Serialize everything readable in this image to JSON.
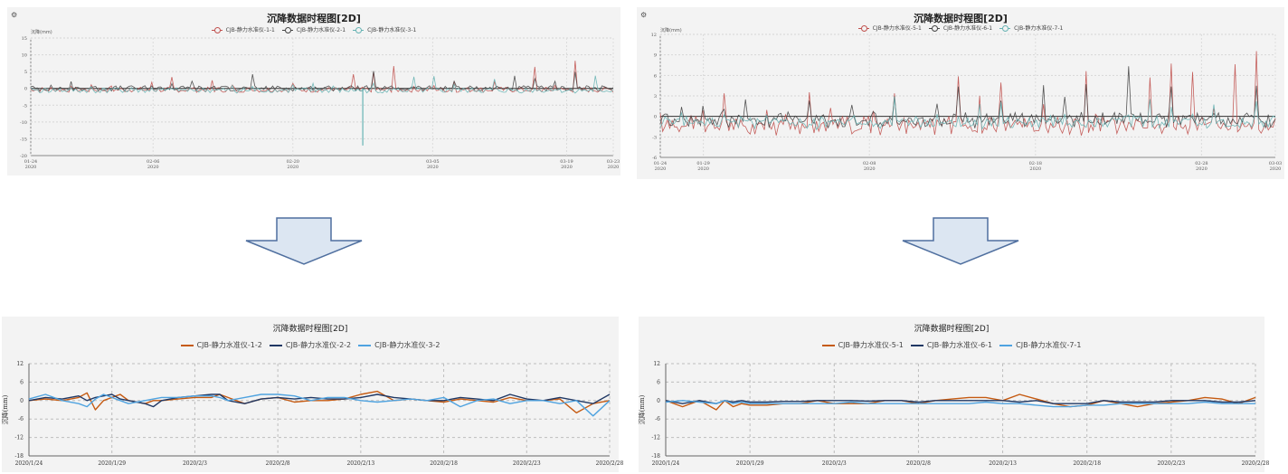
{
  "chart_data": [
    {
      "type": "line",
      "title": "沉降数据时程图[2D]",
      "ylabel": "沉降(mm)",
      "ylim": [
        -20,
        15
      ],
      "yticks": [
        15,
        10,
        5,
        0,
        -5,
        -10,
        -15,
        -20
      ],
      "xticks": [
        [
          "01-24",
          "2020"
        ],
        [
          "02-06",
          "2020"
        ],
        [
          "02-20",
          "2020"
        ],
        [
          "03-05",
          "2020"
        ],
        [
          "03-19",
          "2020"
        ],
        [
          "03-23",
          "2020"
        ]
      ],
      "grid": true,
      "legend_position": "top",
      "series": [
        {
          "name": "CJB-静力水准仪-1-1",
          "color": "#c0504d"
        },
        {
          "name": "CJB-静力水准仪-2-1",
          "color": "#444444"
        },
        {
          "name": "CJB-静力水准仪-3-1",
          "color": "#66b3b3"
        }
      ]
    },
    {
      "type": "line",
      "title": "沉降数据时程图[2D]",
      "ylabel": "沉降(mm)",
      "ylim": [
        -6,
        12
      ],
      "yticks": [
        12,
        9,
        6,
        3,
        0,
        -3,
        -6
      ],
      "xticks": [
        [
          "01-24",
          "2020"
        ],
        [
          "01-29",
          "2020"
        ],
        [
          "02-08",
          "2020"
        ],
        [
          "02-18",
          "2020"
        ],
        [
          "02-28",
          "2020"
        ],
        [
          "03-03",
          "2020"
        ]
      ],
      "grid": true,
      "legend_position": "top",
      "series": [
        {
          "name": "CJB-静力水准仪-5-1",
          "color": "#c0504d"
        },
        {
          "name": "CJB-静力水准仪-6-1",
          "color": "#444444"
        },
        {
          "name": "CJB-静力水准仪-7-1",
          "color": "#66b3b3"
        }
      ]
    },
    {
      "type": "line",
      "title": "沉降数据时程图[2D]",
      "ylabel": "沉降(mm)",
      "ylim": [
        -18,
        12
      ],
      "yticks": [
        12,
        6,
        0,
        -6,
        -12,
        -18
      ],
      "categories": [
        "2020/1/24",
        "2020/1/29",
        "2020/2/3",
        "2020/2/8",
        "2020/2/13",
        "2020/2/18",
        "2020/2/23",
        "2020/2/28"
      ],
      "grid": true,
      "legend_position": "top",
      "series": [
        {
          "name": "CJB-静力水准仪-1-2",
          "color": "#c55a11",
          "x": [
            0,
            1,
            2,
            3,
            3.5,
            4,
            4.5,
            5,
            5.5,
            6,
            7,
            7.5,
            8,
            9,
            10,
            11,
            11.5,
            12,
            13,
            14,
            15,
            16,
            17,
            18,
            19,
            20,
            21,
            22,
            23,
            24,
            25,
            26,
            27,
            28,
            29,
            30,
            31,
            32,
            33,
            34,
            35
          ],
          "values": [
            0,
            0.5,
            0,
            1,
            2.5,
            -3,
            0,
            1,
            2,
            0,
            -1,
            0,
            0,
            0.5,
            1,
            1,
            2,
            1,
            -1,
            0.5,
            1,
            -0.5,
            0,
            0,
            0.5,
            2,
            3,
            0,
            0.5,
            0,
            -0.5,
            0.5,
            0,
            -0.5,
            1,
            0,
            0,
            0.5,
            -4,
            -1,
            0
          ]
        },
        {
          "name": "CJB-静力水准仪-2-2",
          "color": "#203864",
          "x": [
            0,
            1,
            2,
            3,
            3.5,
            4,
            4.5,
            5,
            5.5,
            6,
            7,
            7.5,
            8,
            9,
            10,
            11,
            11.5,
            12,
            13,
            14,
            15,
            16,
            17,
            18,
            19,
            20,
            21,
            22,
            23,
            24,
            25,
            26,
            27,
            28,
            29,
            30,
            31,
            32,
            33,
            34,
            35
          ],
          "values": [
            0,
            1,
            0.5,
            1.5,
            0,
            1,
            1.5,
            2,
            0.5,
            0,
            -1,
            -2,
            0,
            1,
            1.5,
            2,
            2,
            0,
            -1,
            0.5,
            1,
            0.5,
            1,
            0.5,
            0.5,
            1,
            2,
            1,
            0.5,
            0,
            0,
            1,
            0.5,
            0,
            2,
            0.5,
            0,
            1,
            0,
            -1,
            2
          ]
        },
        {
          "name": "CJB-静力水准仪-3-2",
          "color": "#4fa3e0",
          "x": [
            0,
            1,
            2,
            3,
            3.5,
            4,
            4.5,
            5,
            5.5,
            6,
            7,
            7.5,
            8,
            9,
            10,
            11,
            11.5,
            12,
            13,
            14,
            15,
            16,
            17,
            18,
            19,
            20,
            21,
            22,
            23,
            24,
            25,
            26,
            27,
            28,
            29,
            30,
            31,
            32,
            33,
            34,
            35
          ],
          "values": [
            0.5,
            2,
            0,
            -1,
            -2,
            0.5,
            2,
            1,
            0,
            -1,
            0,
            0.5,
            1,
            1,
            1.5,
            1.5,
            1,
            0,
            1,
            2,
            2,
            1.5,
            0,
            1,
            1,
            0,
            -0.5,
            0,
            0.5,
            0,
            1,
            -2,
            0,
            0.5,
            -1,
            0,
            0,
            -1,
            0,
            -5,
            0
          ]
        }
      ]
    },
    {
      "type": "line",
      "title": "沉降数据时程图[2D]",
      "ylabel": "沉降(mm)",
      "ylim": [
        -18,
        12
      ],
      "yticks": [
        12,
        6,
        0,
        -6,
        -12,
        -18
      ],
      "categories": [
        "2020/1/24",
        "2020/1/29",
        "2020/2/3",
        "2020/2/8",
        "2020/2/13",
        "2020/2/18",
        "2020/2/23",
        "2020/2/28"
      ],
      "grid": true,
      "legend_position": "top",
      "series": [
        {
          "name": "CJB-静力水准仪-5-1",
          "color": "#c55a11",
          "x": [
            0,
            1,
            2,
            3,
            3.5,
            4,
            4.5,
            5,
            6,
            7,
            8,
            9,
            10,
            11,
            12,
            13,
            14,
            15,
            16,
            17,
            18,
            19,
            20,
            21,
            22,
            23,
            24,
            25,
            26,
            27,
            28,
            29,
            30,
            31,
            32,
            33,
            34,
            35
          ],
          "values": [
            0,
            -2,
            0,
            -3,
            0,
            -2,
            -1,
            -1.5,
            -1.5,
            -1,
            -1,
            0,
            -1,
            -1,
            -1,
            0,
            0,
            -1,
            0,
            0.5,
            1,
            1,
            0,
            2,
            0.5,
            -1,
            -2,
            -1.5,
            0,
            -1,
            -2,
            -1,
            -0.5,
            0,
            1,
            0.5,
            -1,
            1
          ]
        },
        {
          "name": "CJB-静力水准仪-6-1",
          "color": "#203864",
          "x": [
            0,
            1,
            2,
            3,
            3.5,
            4,
            4.5,
            5,
            6,
            7,
            8,
            9,
            10,
            11,
            12,
            13,
            14,
            15,
            16,
            17,
            18,
            19,
            20,
            21,
            22,
            23,
            24,
            25,
            26,
            27,
            28,
            29,
            30,
            31,
            32,
            33,
            34,
            35
          ],
          "values": [
            0,
            -1,
            0,
            -1,
            0,
            -0.5,
            0,
            -0.5,
            -0.5,
            -0.3,
            -0.3,
            0,
            0,
            0,
            -0.2,
            0,
            0,
            -0.5,
            0,
            0,
            0,
            0,
            0,
            -0.5,
            0,
            -1,
            -1,
            -1,
            0,
            -0.5,
            -0.5,
            -0.5,
            0,
            0,
            0,
            -0.5,
            -0.5,
            0
          ]
        },
        {
          "name": "CJB-静力水准仪-7-1",
          "color": "#4fa3e0",
          "x": [
            0,
            1,
            2,
            3,
            3.5,
            4,
            4.5,
            5,
            6,
            7,
            8,
            9,
            10,
            11,
            12,
            13,
            14,
            15,
            16,
            17,
            18,
            19,
            20,
            21,
            22,
            23,
            24,
            25,
            26,
            27,
            28,
            29,
            30,
            31,
            32,
            33,
            34,
            35
          ],
          "values": [
            -0.5,
            0,
            -0.5,
            -1,
            0,
            -1,
            -0.5,
            -1,
            -1,
            -1,
            -1,
            -1,
            -1,
            -0.5,
            -1,
            -1,
            -1,
            -1,
            -1,
            -1,
            -1,
            -0.5,
            -1,
            -1,
            -1.5,
            -2,
            -2,
            -1.5,
            -1.5,
            -1,
            -1,
            -1,
            -1,
            -1,
            -0.5,
            -1,
            -1,
            -1
          ]
        }
      ]
    }
  ]
}
